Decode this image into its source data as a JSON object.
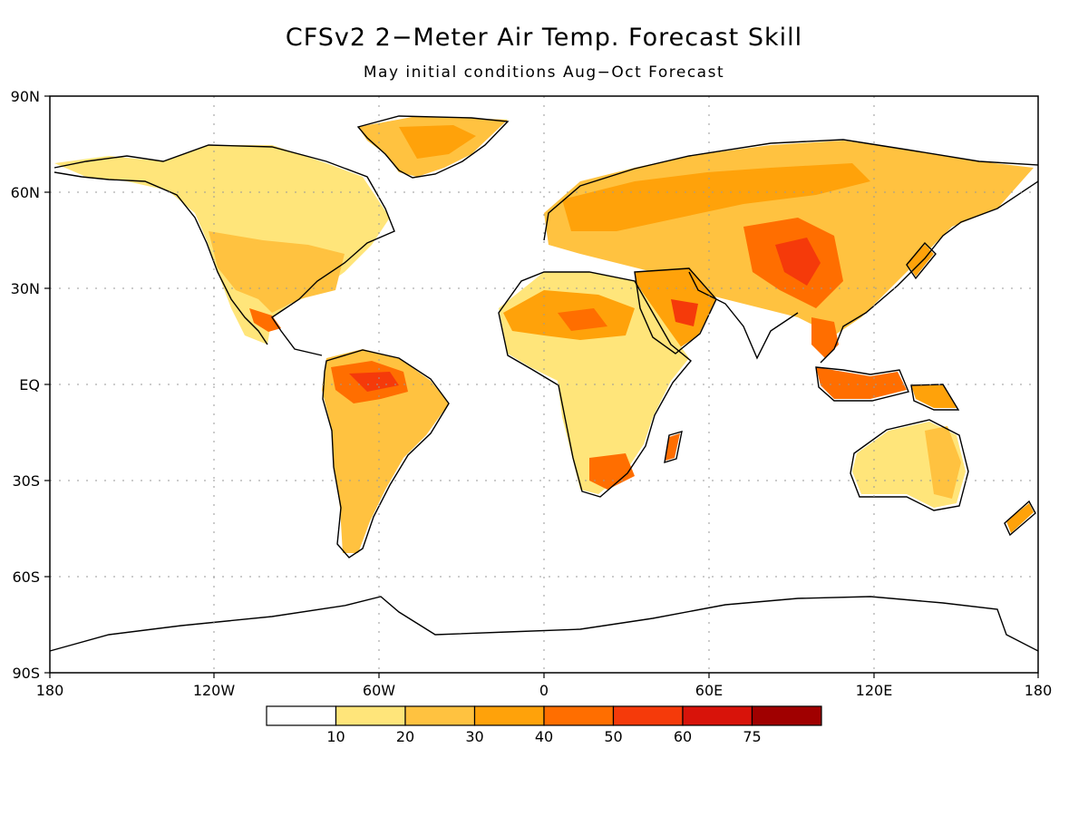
{
  "title": "CFSv2 2−Meter Air Temp. Forecast Skill",
  "subtitle": "May initial conditions   Aug−Oct Forecast",
  "axes": {
    "lat_labels": [
      "90N",
      "60N",
      "30N",
      "EQ",
      "30S",
      "60S",
      "90S"
    ],
    "lon_labels": [
      "180",
      "120W",
      "60W",
      "0",
      "60E",
      "120E",
      "180"
    ]
  },
  "colorbar": {
    "colors": [
      "#ffffff",
      "#ffe57a",
      "#ffc240",
      "#ffa20a",
      "#ff6e00",
      "#f53a0a",
      "#d8130a",
      "#a00000"
    ],
    "labels": [
      "10",
      "20",
      "30",
      "40",
      "50",
      "60",
      "75"
    ]
  }
}
